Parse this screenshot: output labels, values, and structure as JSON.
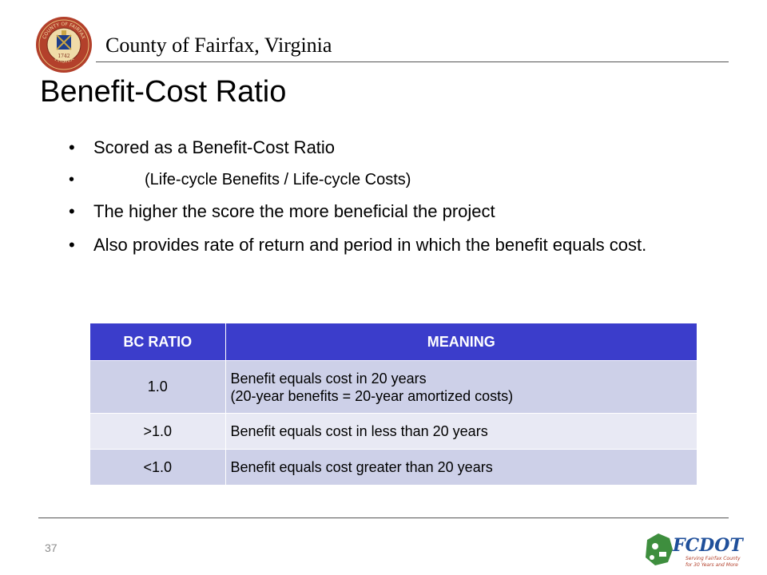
{
  "header": {
    "org_name": "County of Fairfax, Virginia",
    "seal_text": {
      "top": "COUNTY OF FAIRFAX",
      "year": "1742",
      "bottom": "VIRGINIA"
    }
  },
  "slide": {
    "title": "Benefit-Cost Ratio",
    "bullets": [
      "Scored as a Benefit-Cost Ratio",
      "(Life-cycle Benefits / Life-cycle Costs)",
      "The higher the score the more beneficial the project",
      "Also provides rate of return and period in which the benefit equals cost."
    ],
    "bullet_glyph": "•"
  },
  "table": {
    "headers": [
      "BC RATIO",
      "MEANING"
    ],
    "rows": [
      {
        "ratio": "1.0",
        "meaning_lines": [
          "Benefit equals cost in 20 years",
          "(20-year benefits = 20-year amortized costs)"
        ]
      },
      {
        "ratio": ">1.0",
        "meaning_lines": [
          "Benefit equals cost in less than 20 years"
        ]
      },
      {
        "ratio": "<1.0",
        "meaning_lines": [
          "Benefit equals cost greater than 20 years"
        ]
      }
    ],
    "colors": {
      "header_bg": "#3b3dcb",
      "row_dark": "#cdd0e8",
      "row_light": "#e8e9f4"
    }
  },
  "footer": {
    "page_number": "37",
    "logo": {
      "name": "FCDOT",
      "tagline_1": "Serving Fairfax County",
      "tagline_2": "for 30 Years and More"
    }
  }
}
